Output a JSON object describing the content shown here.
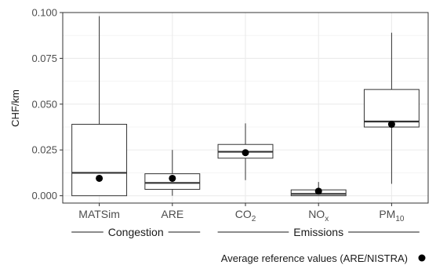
{
  "chart_data": {
    "type": "box",
    "ylabel": "CHF/km",
    "ylim": [
      -0.004,
      0.1
    ],
    "yticks": [
      0.0,
      0.025,
      0.05,
      0.075,
      0.1
    ],
    "ytick_labels": [
      "0.000",
      "0.025",
      "0.050",
      "0.075",
      "0.100"
    ],
    "grid": true,
    "categories": [
      {
        "label": "MATSim",
        "sub": ""
      },
      {
        "label": "ARE",
        "sub": ""
      },
      {
        "label": "CO",
        "sub": "2"
      },
      {
        "label": "NO",
        "sub": "x"
      },
      {
        "label": "PM",
        "sub": "10"
      }
    ],
    "boxes": [
      {
        "whisker_low": 0.0,
        "q1": 0.0,
        "median": 0.0125,
        "q3": 0.039,
        "whisker_high": 0.098
      },
      {
        "whisker_low": 0.0,
        "q1": 0.0035,
        "median": 0.007,
        "q3": 0.012,
        "whisker_high": 0.025
      },
      {
        "whisker_low": 0.0085,
        "q1": 0.0205,
        "median": 0.024,
        "q3": 0.028,
        "whisker_high": 0.0395
      },
      {
        "whisker_low": 0.0,
        "q1": 0.0,
        "median": 0.001,
        "q3": 0.0032,
        "whisker_high": 0.0075
      },
      {
        "whisker_low": 0.0065,
        "q1": 0.0375,
        "median": 0.0405,
        "q3": 0.058,
        "whisker_high": 0.089
      }
    ],
    "reference_points": [
      0.0095,
      0.0095,
      0.0235,
      0.0025,
      0.039
    ],
    "groups": [
      {
        "label": "Congestion",
        "from": 0,
        "to": 1
      },
      {
        "label": "Emissions",
        "from": 2,
        "to": 4
      }
    ],
    "legend": {
      "label": "Average reference values (ARE/NISTRA)",
      "position": "bottom-right"
    }
  }
}
